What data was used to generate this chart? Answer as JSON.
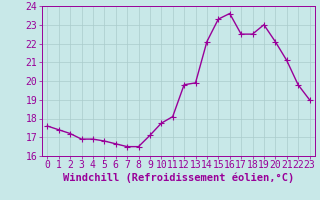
{
  "x": [
    0,
    1,
    2,
    3,
    4,
    5,
    6,
    7,
    8,
    9,
    10,
    11,
    12,
    13,
    14,
    15,
    16,
    17,
    18,
    19,
    20,
    21,
    22,
    23
  ],
  "y": [
    17.6,
    17.4,
    17.2,
    16.9,
    16.9,
    16.8,
    16.65,
    16.5,
    16.5,
    17.1,
    17.75,
    18.1,
    19.8,
    19.9,
    22.1,
    23.3,
    23.6,
    22.5,
    22.5,
    23.0,
    22.1,
    21.1,
    19.8,
    19.0
  ],
  "line_color": "#990099",
  "markersize": 2.5,
  "linewidth": 1.0,
  "ylim": [
    16,
    24
  ],
  "yticks": [
    16,
    17,
    18,
    19,
    20,
    21,
    22,
    23,
    24
  ],
  "xtick_labels": [
    "0",
    "1",
    "2",
    "3",
    "4",
    "5",
    "6",
    "7",
    "8",
    "9",
    "10",
    "11",
    "12",
    "13",
    "14",
    "15",
    "16",
    "17",
    "18",
    "19",
    "20",
    "21",
    "22",
    "23"
  ],
  "xlabel": "Windchill (Refroidissement éolien,°C)",
  "background_color": "#c8e8e8",
  "grid_color": "#aacccc",
  "xlabel_fontsize": 7.5,
  "tick_fontsize": 7,
  "label_color": "#990099"
}
